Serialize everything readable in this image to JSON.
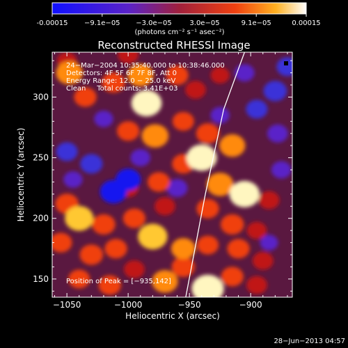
{
  "colorbar": {
    "tick_labels": [
      "-0.00015",
      "−9.1e−05",
      "−3.0e−05",
      "3.0e−05",
      "9.1e−05",
      "0.00015"
    ],
    "tick_values": [
      -0.00015,
      -9.1e-05,
      -3e-05,
      3e-05,
      9.1e-05,
      0.00015
    ],
    "range": [
      -0.00015,
      0.00015
    ],
    "unit_label": "(photons cm⁻² s⁻¹ asec⁻²)",
    "colors": [
      "#1010ff",
      "#5a22c8",
      "#a0203c",
      "#f04010",
      "#ffb020",
      "#ffffff"
    ]
  },
  "chart_data": {
    "type": "heatmap",
    "title": "Reconstructed RHESSI Image",
    "xlabel": "Heliocentric X (arcsec)",
    "ylabel": "Heliocentric Y (arcsec)",
    "xlim": [
      -1062,
      -866
    ],
    "ylim": [
      135,
      337
    ],
    "x_ticks": [
      -1050,
      -1000,
      -950,
      -900
    ],
    "x_tick_labels": [
      "−1050",
      "−1000",
      "−950",
      "−900"
    ],
    "y_ticks": [
      150,
      200,
      250,
      300
    ],
    "y_tick_labels": [
      "150",
      "200",
      "250",
      "300"
    ],
    "limb_curve": {
      "x": [
        -953,
        -937,
        -922,
        -905
      ],
      "y": [
        135,
        220,
        290,
        337
      ]
    },
    "peak": {
      "x": -935,
      "y": 142
    },
    "annotations": [
      "24−Mar−2004 10:35:40.000 to 10:38:46.000",
      "Detectors: 4F 5F 6F 7F 8F, Att 0",
      "Energy Range: 12.0 − 25.0 keV",
      "Clean     Total counts: 3.41E+03"
    ],
    "peak_label": "Position of Peak = [−935,142]",
    "blobs": [
      {
        "x": -1048,
        "y": 320,
        "v": 0.8
      },
      {
        "x": -1035,
        "y": 300,
        "v": 0.55
      },
      {
        "x": -1012,
        "y": 312,
        "v": 0.6
      },
      {
        "x": -990,
        "y": 318,
        "v": 0.75
      },
      {
        "x": -985,
        "y": 295,
        "v": 1.0
      },
      {
        "x": -960,
        "y": 318,
        "v": 0.55
      },
      {
        "x": -945,
        "y": 306,
        "v": 0.45
      },
      {
        "x": -925,
        "y": 318,
        "v": 0.35
      },
      {
        "x": -1000,
        "y": 272,
        "v": 0.55
      },
      {
        "x": -978,
        "y": 268,
        "v": 0.8
      },
      {
        "x": -955,
        "y": 280,
        "v": 0.5
      },
      {
        "x": -935,
        "y": 270,
        "v": 0.6
      },
      {
        "x": -915,
        "y": 260,
        "v": 0.75
      },
      {
        "x": -940,
        "y": 250,
        "v": 1.0
      },
      {
        "x": -955,
        "y": 245,
        "v": 0.55
      },
      {
        "x": -1000,
        "y": 225,
        "v": 0.45
      },
      {
        "x": -975,
        "y": 230,
        "v": 0.55
      },
      {
        "x": -925,
        "y": 228,
        "v": 0.8
      },
      {
        "x": -905,
        "y": 220,
        "v": 1.0
      },
      {
        "x": -885,
        "y": 215,
        "v": 0.45
      },
      {
        "x": -1050,
        "y": 212,
        "v": 0.6
      },
      {
        "x": -1040,
        "y": 200,
        "v": 0.9
      },
      {
        "x": -1020,
        "y": 195,
        "v": 0.6
      },
      {
        "x": -995,
        "y": 200,
        "v": 0.55
      },
      {
        "x": -970,
        "y": 210,
        "v": 0.45
      },
      {
        "x": -935,
        "y": 208,
        "v": 0.55
      },
      {
        "x": -915,
        "y": 195,
        "v": 0.6
      },
      {
        "x": -895,
        "y": 190,
        "v": 0.4
      },
      {
        "x": -1055,
        "y": 180,
        "v": 0.55
      },
      {
        "x": -1030,
        "y": 170,
        "v": 0.6
      },
      {
        "x": -1010,
        "y": 175,
        "v": 0.55
      },
      {
        "x": -980,
        "y": 185,
        "v": 0.95
      },
      {
        "x": -955,
        "y": 175,
        "v": 0.65
      },
      {
        "x": -935,
        "y": 178,
        "v": 0.5
      },
      {
        "x": -910,
        "y": 175,
        "v": 0.55
      },
      {
        "x": -890,
        "y": 165,
        "v": 0.45
      },
      {
        "x": -1040,
        "y": 150,
        "v": 0.5
      },
      {
        "x": -1015,
        "y": 145,
        "v": 0.55
      },
      {
        "x": -995,
        "y": 158,
        "v": 0.45
      },
      {
        "x": -970,
        "y": 148,
        "v": 0.75
      },
      {
        "x": -955,
        "y": 160,
        "v": 0.6
      },
      {
        "x": -935,
        "y": 142,
        "v": 1.1
      },
      {
        "x": -915,
        "y": 152,
        "v": 0.55
      },
      {
        "x": -895,
        "y": 145,
        "v": 0.45
      },
      {
        "x": -1050,
        "y": 330,
        "v": 0.4
      },
      {
        "x": -1000,
        "y": 335,
        "v": 0.45
      },
      {
        "x": -1030,
        "y": 245,
        "v": -0.55
      },
      {
        "x": -1050,
        "y": 255,
        "v": -0.5
      },
      {
        "x": -1012,
        "y": 222,
        "v": -0.8
      },
      {
        "x": -1000,
        "y": 232,
        "v": -0.7
      },
      {
        "x": -880,
        "y": 305,
        "v": -0.6
      },
      {
        "x": -895,
        "y": 290,
        "v": -0.5
      },
      {
        "x": -878,
        "y": 270,
        "v": -0.45
      },
      {
        "x": -870,
        "y": 325,
        "v": -0.5
      },
      {
        "x": -905,
        "y": 320,
        "v": -0.4
      },
      {
        "x": -960,
        "y": 225,
        "v": -0.45
      },
      {
        "x": -990,
        "y": 250,
        "v": -0.4
      },
      {
        "x": -1020,
        "y": 282,
        "v": -0.35
      },
      {
        "x": -875,
        "y": 240,
        "v": -0.4
      },
      {
        "x": -925,
        "y": 285,
        "v": -0.35
      },
      {
        "x": -1045,
        "y": 232,
        "v": -0.35
      },
      {
        "x": -885,
        "y": 180,
        "v": -0.3
      }
    ]
  },
  "footer": {
    "timestamp": "28−Jun−2013 04:57"
  }
}
